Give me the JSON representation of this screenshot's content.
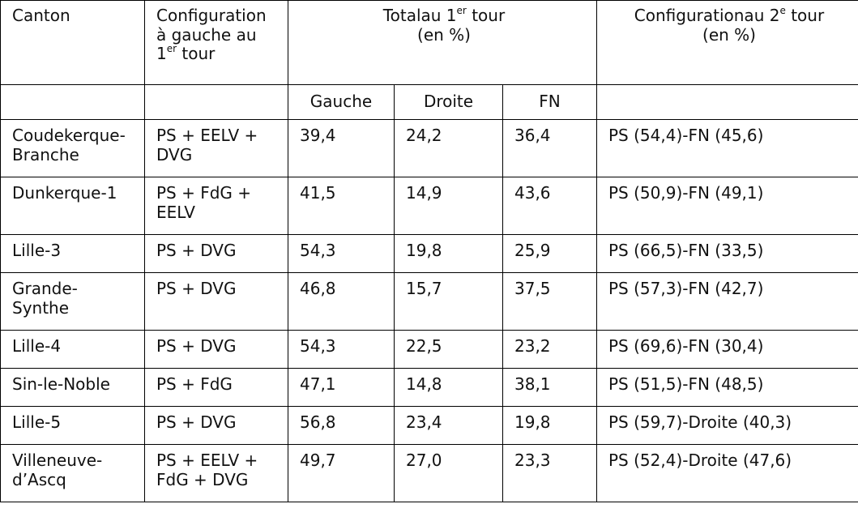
{
  "table": {
    "headers": {
      "canton": "Canton",
      "config_line1": "Configuration",
      "config_line2": "à gauche au",
      "config_line3_pre": "1",
      "config_line3_sup": "er",
      "config_line3_post": " tour",
      "total_pre": "Totalau 1",
      "total_sup": "er",
      "total_post": "tour",
      "total_line2": "(en %)",
      "second_pre": "Configurationau 2",
      "second_sup": "e",
      "second_post": "tour",
      "second_line2": "(en %)"
    },
    "subheaders": {
      "gauche": "Gauche",
      "droite": "Droite",
      "fn": "FN"
    },
    "rows": [
      {
        "canton": "Coudekerque-Branche",
        "config": "PS + EELV + DVG",
        "gauche": "39,4",
        "droite": "24,2",
        "fn": "36,4",
        "second": "PS (54,4)-FN (45,6)"
      },
      {
        "canton": "Dunkerque-1",
        "config": "PS + FdG + EELV",
        "gauche": "41,5",
        "droite": "14,9",
        "fn": "43,6",
        "second": "PS (50,9)-FN (49,1)"
      },
      {
        "canton": "Lille-3",
        "config": "PS + DVG",
        "gauche": "54,3",
        "droite": "19,8",
        "fn": "25,9",
        "second": "PS (66,5)-FN (33,5)"
      },
      {
        "canton": "Grande-Synthe",
        "config": "PS + DVG",
        "gauche": "46,8",
        "droite": "15,7",
        "fn": "37,5",
        "second": "PS (57,3)-FN (42,7)"
      },
      {
        "canton": "Lille-4",
        "config": "PS + DVG",
        "gauche": "54,3",
        "droite": "22,5",
        "fn": "23,2",
        "second": "PS (69,6)-FN (30,4)"
      },
      {
        "canton": "Sin-le-Noble",
        "config": "PS + FdG",
        "gauche": "47,1",
        "droite": "14,8",
        "fn": "38,1",
        "second": "PS (51,5)-FN (48,5)"
      },
      {
        "canton": "Lille-5",
        "config": "PS + DVG",
        "gauche": "56,8",
        "droite": "23,4",
        "fn": "19,8",
        "second": "PS (59,7)-Droite (40,3)"
      },
      {
        "canton": "Villeneuve-d’Ascq",
        "config": "PS + EELV + FdG + DVG",
        "gauche": "49,7",
        "droite": "27,0",
        "fn": "23,3",
        "second": "PS (52,4)-Droite (47,6)"
      }
    ]
  }
}
